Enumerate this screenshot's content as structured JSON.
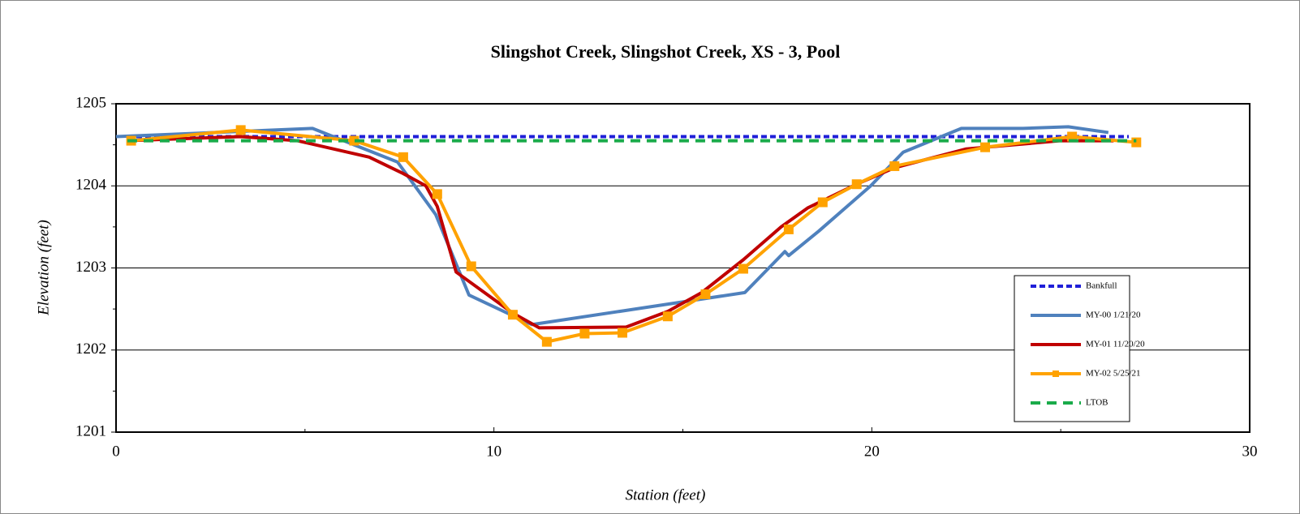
{
  "chart_data": {
    "type": "line",
    "title": "Slingshot Creek, Slingshot Creek, XS - 3, Pool",
    "x_label": "Station (feet)",
    "y_label": "Elevation (feet)",
    "xlim": [
      0,
      30
    ],
    "ylim": [
      1201,
      1205
    ],
    "xticks": [
      0,
      10,
      20,
      30
    ],
    "yticks": [
      1201,
      1202,
      1203,
      1204,
      1205
    ],
    "grid": true,
    "legend_position": "lower right",
    "series": [
      {
        "name": "Bankfull",
        "color": "#1f1fd8",
        "line_style": "dotted",
        "marker": "none",
        "x": [
          0.3,
          26.8
        ],
        "y": [
          1204.6,
          1204.6
        ]
      },
      {
        "name": "MY-00 1/21/20",
        "color": "#4f81bd",
        "line_style": "solid",
        "marker": "none",
        "x": [
          0,
          5.2,
          7.45,
          8.46,
          9.34,
          11.0,
          16.64,
          17.7,
          17.8,
          18.6,
          19.97,
          20.83,
          22.37,
          24.0,
          25.2,
          26.26
        ],
        "y": [
          1204.6,
          1204.7,
          1204.29,
          1203.65,
          1202.67,
          1202.31,
          1202.7,
          1203.2,
          1203.15,
          1203.45,
          1204.0,
          1204.41,
          1204.7,
          1204.7,
          1204.72,
          1204.65
        ]
      },
      {
        "name": "MY-01 11/20/20",
        "color": "#c00000",
        "line_style": "solid",
        "marker": "none",
        "x": [
          0.3,
          3.3,
          4.8,
          6.7,
          7.6,
          8.2,
          8.5,
          9.0,
          10.5,
          11.2,
          13.5,
          14.6,
          15.5,
          16.6,
          17.6,
          18.3,
          19.6,
          20.6,
          22.5,
          25.0,
          26.4
        ],
        "y": [
          1204.55,
          1204.6,
          1204.55,
          1204.35,
          1204.15,
          1204.0,
          1203.75,
          1202.95,
          1202.45,
          1202.27,
          1202.28,
          1202.47,
          1202.7,
          1203.1,
          1203.5,
          1203.73,
          1204.02,
          1204.22,
          1204.45,
          1204.55,
          1204.55
        ]
      },
      {
        "name": "MY-02 5/25/21",
        "color": "#ffa200",
        "line_style": "solid",
        "marker": "square",
        "x": [
          0.4,
          3.3,
          6.3,
          7.6,
          8.5,
          9.4,
          10.5,
          11.4,
          12.4,
          13.4,
          14.6,
          15.6,
          16.6,
          17.8,
          18.7,
          19.6,
          20.6,
          23.0,
          25.3,
          27.0
        ],
        "y": [
          1204.55,
          1204.68,
          1204.55,
          1204.35,
          1203.9,
          1203.02,
          1202.43,
          1202.1,
          1202.2,
          1202.21,
          1202.41,
          1202.68,
          1202.99,
          1203.47,
          1203.8,
          1204.02,
          1204.24,
          1204.47,
          1204.6,
          1204.53
        ]
      },
      {
        "name": "LTOB",
        "color": "#1aab4a",
        "line_style": "dashed",
        "marker": "none",
        "x": [
          0.3,
          27.0
        ],
        "y": [
          1204.55,
          1204.55
        ]
      }
    ]
  }
}
